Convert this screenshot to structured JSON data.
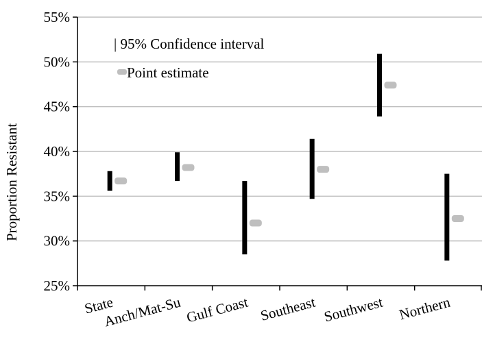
{
  "chart_data": {
    "type": "scatter",
    "title": "",
    "xlabel": "",
    "ylabel": "Proportion Resistant",
    "ylim": [
      25,
      55
    ],
    "yticks": [
      "25%",
      "30%",
      "35%",
      "40%",
      "45%",
      "50%",
      "55%"
    ],
    "ytick_values": [
      25,
      30,
      35,
      40,
      45,
      50,
      55
    ],
    "categories": [
      "State",
      "Anch/Mat-Su",
      "Gulf Coast",
      "Southeast",
      "Southwest",
      "Northern"
    ],
    "grid": true,
    "legend_position": "top-left",
    "series": [
      {
        "name": "95% Confidence interval",
        "low": [
          35.6,
          36.7,
          28.5,
          34.7,
          43.9,
          27.8
        ],
        "high": [
          37.8,
          39.9,
          36.7,
          41.4,
          50.9,
          37.5
        ]
      },
      {
        "name": "Point estimate",
        "values": [
          36.7,
          38.2,
          32.0,
          38.0,
          47.4,
          32.5
        ]
      }
    ],
    "legend_labels": {
      "ci": "| 95% Confidence interval",
      "point": "Point estimate"
    },
    "colors": {
      "ci": "#000000",
      "point": "#bfbfbf",
      "grid": "#bfbfbf",
      "axis": "#000000"
    }
  }
}
